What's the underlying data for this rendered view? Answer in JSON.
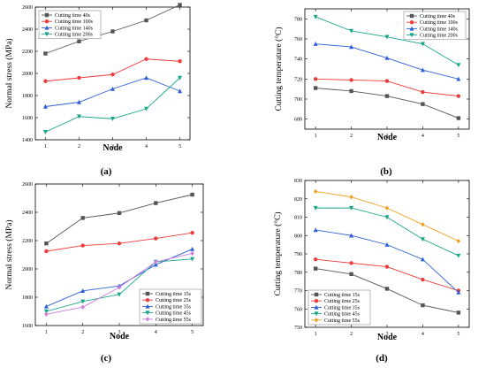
{
  "chart_data": [
    {
      "id": "a",
      "type": "line",
      "panel_label": "(a)",
      "xlabel": "Node",
      "ylabel": "Normal stress (MPa)",
      "x": [
        1,
        2,
        3,
        4,
        5
      ],
      "xlim": [
        0.7,
        5.3
      ],
      "ylim": [
        1400,
        2600
      ],
      "yticks": [
        1400,
        1600,
        1800,
        2000,
        2200,
        2400,
        2600
      ],
      "legend_position": "top-left",
      "series": [
        {
          "name": "Cutting time 40s",
          "color": "#555555",
          "marker": "square",
          "values": [
            2180,
            2290,
            2380,
            2480,
            2620
          ]
        },
        {
          "name": "Cutting time 100s",
          "color": "#ee3b3b",
          "marker": "circle",
          "values": [
            1930,
            1960,
            1990,
            2130,
            2110
          ]
        },
        {
          "name": "Cutting time 140s",
          "color": "#2f5fd8",
          "marker": "triangle",
          "values": [
            1700,
            1740,
            1860,
            1960,
            1840
          ]
        },
        {
          "name": "Cutting time 200s",
          "color": "#1aa58a",
          "marker": "triangle-down",
          "values": [
            1470,
            1610,
            1590,
            1680,
            1960
          ]
        }
      ]
    },
    {
      "id": "b",
      "type": "line",
      "panel_label": "(b)",
      "xlabel": "Node",
      "ylabel": "Cutting temperature (°C)",
      "x": [
        1,
        2,
        3,
        4,
        5
      ],
      "xlim": [
        0.7,
        5.3
      ],
      "ylim": [
        670,
        790
      ],
      "yticks": [
        680,
        700,
        720,
        740,
        760,
        780
      ],
      "legend_position": "top-right",
      "series": [
        {
          "name": "Cutting time 40s",
          "color": "#555555",
          "marker": "square",
          "values": [
            711,
            708,
            703,
            695,
            681
          ]
        },
        {
          "name": "Cutting time 100s",
          "color": "#ee3b3b",
          "marker": "circle",
          "values": [
            720,
            719,
            718,
            707,
            703
          ]
        },
        {
          "name": "Cutting time 140s",
          "color": "#2f5fd8",
          "marker": "triangle",
          "values": [
            755,
            752,
            741,
            729,
            720
          ]
        },
        {
          "name": "Cutting time 200s",
          "color": "#1aa58a",
          "marker": "triangle-down",
          "values": [
            782,
            768,
            762,
            755,
            734
          ]
        }
      ]
    },
    {
      "id": "c",
      "type": "line",
      "panel_label": "(c)",
      "xlabel": "Node",
      "ylabel": "Normal stress (MPa)",
      "x": [
        1,
        2,
        3,
        4,
        5
      ],
      "xlim": [
        0.7,
        5.3
      ],
      "ylim": [
        1600,
        2600
      ],
      "yticks": [
        1600,
        1800,
        2000,
        2200,
        2400,
        2600
      ],
      "legend_position": "bottom-right",
      "series": [
        {
          "name": "Cutting time 15s",
          "color": "#555555",
          "marker": "square",
          "values": [
            2180,
            2360,
            2395,
            2465,
            2525
          ]
        },
        {
          "name": "Cutting time 25s",
          "color": "#ee3b3b",
          "marker": "circle",
          "values": [
            2125,
            2165,
            2180,
            2215,
            2255
          ]
        },
        {
          "name": "Cutting time 35s",
          "color": "#2f5fd8",
          "marker": "triangle",
          "values": [
            1735,
            1845,
            1880,
            2030,
            2140
          ]
        },
        {
          "name": "Cutting time 45s",
          "color": "#1aa58a",
          "marker": "triangle-down",
          "values": [
            1700,
            1770,
            1820,
            2050,
            2070
          ]
        },
        {
          "name": "Cutting time 55s",
          "color": "#c97fdc",
          "marker": "diamond",
          "values": [
            1680,
            1730,
            1870,
            2050,
            2110
          ]
        }
      ]
    },
    {
      "id": "d",
      "type": "line",
      "panel_label": "(d)",
      "xlabel": "Node",
      "ylabel": "Cutting temperature (°C)",
      "x": [
        1,
        2,
        3,
        4,
        5
      ],
      "xlim": [
        0.7,
        5.3
      ],
      "ylim": [
        750,
        830
      ],
      "yticks": [
        750,
        760,
        770,
        780,
        790,
        800,
        810,
        820,
        830
      ],
      "legend_position": "bottom-left",
      "series": [
        {
          "name": "Cutting time 15s",
          "color": "#555555",
          "marker": "square",
          "values": [
            782,
            779,
            771,
            762,
            758
          ]
        },
        {
          "name": "Cutting time 25s",
          "color": "#ee3b3b",
          "marker": "circle",
          "values": [
            787,
            785,
            783,
            776,
            770
          ]
        },
        {
          "name": "Cutting time 35s",
          "color": "#2f5fd8",
          "marker": "triangle",
          "values": [
            803,
            800,
            795,
            787,
            769
          ]
        },
        {
          "name": "Cutting time 45s",
          "color": "#1aa58a",
          "marker": "triangle-down",
          "values": [
            815,
            815,
            810,
            798,
            789
          ]
        },
        {
          "name": "Cutting time 55s",
          "color": "#f0a020",
          "marker": "diamond",
          "values": [
            824,
            821,
            815,
            806,
            797
          ]
        }
      ]
    }
  ]
}
